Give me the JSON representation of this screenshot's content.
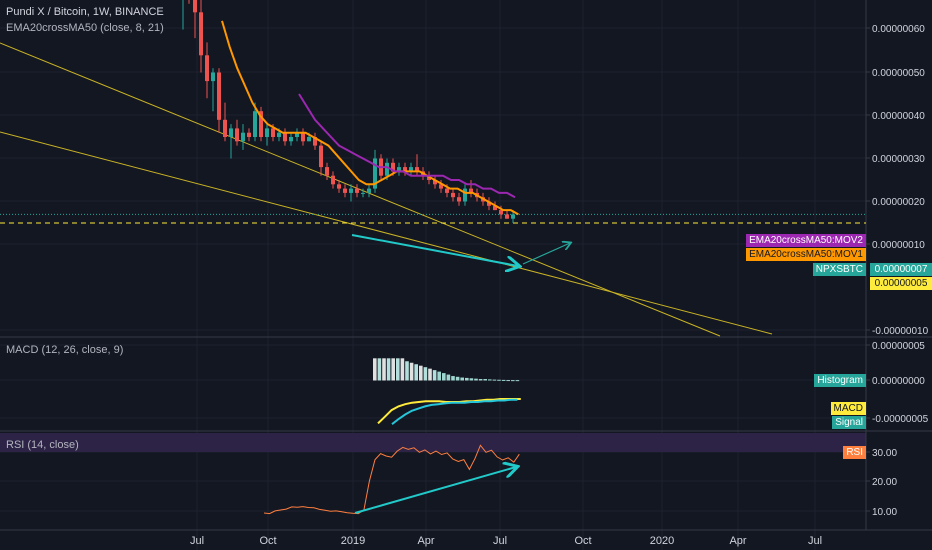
{
  "header": {
    "title": "Pundi X / Bitcoin, 1W, BINANCE",
    "indicator": "EMA20crossMA50 (close, 8, 21)",
    "macd": "MACD (12, 26, close, 9)",
    "rsi": "RSI (14, close)"
  },
  "badges": {
    "mov2": "EMA20crossMA50:MOV2",
    "mov1": "EMA20crossMA50:MOV1",
    "symbol": "NPXSBTC",
    "histogram": "Histogram",
    "macd": "MACD",
    "signal": "Signal",
    "rsi": "RSI"
  },
  "price_labels": {
    "current": "0.00000007",
    "dashed": "0.00000005"
  },
  "colors": {
    "background": "#131722",
    "up": "#26a69a",
    "down": "#ef5350",
    "ema": "#ff9800",
    "ma": "#9c27b0",
    "trendline": "#c9b326",
    "annotation": "#22c9c9",
    "rsi_line": "#ff7f3f",
    "rsi_band": "#2d2347",
    "macd_line": "#ffeb3b",
    "signal_line": "#26c6da",
    "price_line_current": "#26a69a",
    "price_line_dashed": "#ffeb3b"
  },
  "chart_data": [
    {
      "type": "candlestick",
      "title": "Pundi X / Bitcoin, 1W, BINANCE",
      "x_ticks": [
        "Jul",
        "Oct",
        "2019",
        "Apr",
        "Jul",
        "Oct",
        "2020",
        "Apr",
        "Jul"
      ],
      "y_ticks": [
        "0.00000060",
        "0.00000050",
        "0.00000040",
        "0.00000030",
        "0.00000020",
        "0.00000010",
        "-0.00000010"
      ],
      "ylim": [
        -1e-07,
        6.5e-07
      ],
      "candles": [
        {
          "o": 62,
          "h": 66,
          "l": 50,
          "c": 66
        },
        {
          "o": 66,
          "h": 70,
          "l": 56,
          "c": 60
        },
        {
          "o": 60,
          "h": 64,
          "l": 48,
          "c": 54
        },
        {
          "o": 54,
          "h": 58,
          "l": 40,
          "c": 44
        },
        {
          "o": 44,
          "h": 47,
          "l": 34,
          "c": 38
        },
        {
          "o": 38,
          "h": 41,
          "l": 31,
          "c": 40
        },
        {
          "o": 40,
          "h": 41,
          "l": 26,
          "c": 29
        },
        {
          "o": 29,
          "h": 33,
          "l": 24,
          "c": 25
        },
        {
          "o": 25,
          "h": 28,
          "l": 20,
          "c": 27
        },
        {
          "o": 27,
          "h": 29,
          "l": 23,
          "c": 24
        },
        {
          "o": 24,
          "h": 28,
          "l": 22,
          "c": 26
        },
        {
          "o": 26,
          "h": 27,
          "l": 24,
          "c": 25
        },
        {
          "o": 25,
          "h": 33,
          "l": 24,
          "c": 31
        },
        {
          "o": 31,
          "h": 32,
          "l": 24,
          "c": 25
        },
        {
          "o": 25,
          "h": 28,
          "l": 23,
          "c": 27
        },
        {
          "o": 27,
          "h": 28,
          "l": 24,
          "c": 25
        },
        {
          "o": 25,
          "h": 27,
          "l": 24,
          "c": 26
        },
        {
          "o": 26,
          "h": 27,
          "l": 23,
          "c": 24
        },
        {
          "o": 24,
          "h": 26,
          "l": 23,
          "c": 25
        },
        {
          "o": 25,
          "h": 27,
          "l": 24,
          "c": 26
        },
        {
          "o": 26,
          "h": 27,
          "l": 23,
          "c": 24
        },
        {
          "o": 24,
          "h": 26,
          "l": 24,
          "c": 25
        },
        {
          "o": 25,
          "h": 26,
          "l": 22,
          "c": 23
        },
        {
          "o": 23,
          "h": 24,
          "l": 16,
          "c": 18
        },
        {
          "o": 18,
          "h": 19,
          "l": 15,
          "c": 16
        },
        {
          "o": 16,
          "h": 17,
          "l": 13,
          "c": 14
        },
        {
          "o": 14,
          "h": 15,
          "l": 12,
          "c": 13
        },
        {
          "o": 13,
          "h": 14,
          "l": 11,
          "c": 12
        },
        {
          "o": 12,
          "h": 14,
          "l": 10,
          "c": 13
        },
        {
          "o": 13,
          "h": 14,
          "l": 11,
          "c": 12
        },
        {
          "o": 12,
          "h": 13,
          "l": 11,
          "c": 12
        },
        {
          "o": 12,
          "h": 14,
          "l": 11,
          "c": 13
        },
        {
          "o": 13,
          "h": 22,
          "l": 12,
          "c": 20
        },
        {
          "o": 20,
          "h": 21,
          "l": 15,
          "c": 16
        },
        {
          "o": 16,
          "h": 20,
          "l": 15,
          "c": 19
        },
        {
          "o": 19,
          "h": 20,
          "l": 16,
          "c": 17
        },
        {
          "o": 17,
          "h": 19,
          "l": 16,
          "c": 18
        },
        {
          "o": 18,
          "h": 19,
          "l": 16,
          "c": 17
        },
        {
          "o": 17,
          "h": 19,
          "l": 16,
          "c": 18
        },
        {
          "o": 18,
          "h": 21,
          "l": 16,
          "c": 17
        },
        {
          "o": 17,
          "h": 18,
          "l": 15,
          "c": 16
        },
        {
          "o": 16,
          "h": 17,
          "l": 14,
          "c": 15
        },
        {
          "o": 15,
          "h": 16,
          "l": 13,
          "c": 14
        },
        {
          "o": 14,
          "h": 15,
          "l": 12,
          "c": 13
        },
        {
          "o": 13,
          "h": 14,
          "l": 11,
          "c": 12
        },
        {
          "o": 12,
          "h": 13,
          "l": 10,
          "c": 11
        },
        {
          "o": 11,
          "h": 12,
          "l": 9,
          "c": 10
        },
        {
          "o": 10,
          "h": 14,
          "l": 9,
          "c": 13
        },
        {
          "o": 13,
          "h": 15,
          "l": 11,
          "c": 12
        },
        {
          "o": 12,
          "h": 13,
          "l": 10,
          "c": 11
        },
        {
          "o": 11,
          "h": 12,
          "l": 9,
          "c": 10
        },
        {
          "o": 10,
          "h": 11,
          "l": 8,
          "c": 9
        },
        {
          "o": 9,
          "h": 10,
          "l": 8,
          "c": 8
        },
        {
          "o": 8,
          "h": 9,
          "l": 6,
          "c": 7
        },
        {
          "o": 7,
          "h": 8,
          "l": 6,
          "c": 6
        },
        {
          "o": 6,
          "h": 8,
          "l": 5,
          "c": 7
        }
      ],
      "ema": [
        52,
        46,
        41,
        37,
        33,
        30,
        28,
        27,
        26,
        26,
        26,
        26,
        25,
        24,
        23,
        21,
        19,
        17,
        15,
        14,
        14,
        15,
        16,
        17,
        17,
        17,
        17,
        16,
        15,
        14,
        13,
        13,
        12,
        12,
        11,
        10,
        9,
        8,
        8,
        7
      ],
      "ma": [
        35,
        32,
        29,
        27,
        25,
        23,
        22,
        21,
        20,
        19,
        18,
        18,
        17,
        17,
        16,
        16,
        16,
        16,
        16,
        15,
        15,
        14,
        14,
        13,
        13,
        12,
        12,
        11
      ],
      "current_price": 7,
      "dashed_price": 5
    },
    {
      "type": "histogram",
      "title": "MACD (12, 26, close, 9)",
      "y_ticks": [
        "0.00000005",
        "0.00000000",
        "-0.00000005"
      ],
      "histogram": [
        3,
        3,
        3,
        3,
        3,
        3,
        3,
        2.6,
        2.4,
        2.2,
        2.0,
        1.8,
        1.6,
        1.4,
        1.2,
        1.0,
        0.8,
        0.6,
        0.5,
        0.4,
        0.35,
        0.3,
        0.25,
        0.2,
        0.2,
        0.15,
        0.12,
        0.1,
        0.08,
        0.06,
        0.05,
        0.05
      ],
      "macd": [
        -5.8,
        -4.9,
        -4.0,
        -3.5,
        -3.2,
        -3.0,
        -2.9,
        -2.8,
        -2.8,
        -2.8,
        -2.9,
        -2.9,
        -2.9,
        -2.8,
        -2.8,
        -2.7,
        -2.6,
        -2.6,
        -2.5,
        -2.5,
        -2.5,
        -2.5
      ],
      "signal": [
        -5.9,
        -5.2,
        -4.6,
        -4.1,
        -3.8,
        -3.5,
        -3.3,
        -3.2,
        -3.1,
        -3.0,
        -3.0,
        -3.0,
        -2.9,
        -2.9,
        -2.8,
        -2.8,
        -2.7,
        -2.7,
        -2.6,
        -2.6
      ]
    },
    {
      "type": "line",
      "title": "RSI (14, close)",
      "y_ticks": [
        "30.00",
        "20.00",
        "10.00"
      ],
      "rsi": [
        9.5,
        9.3,
        10.2,
        10.5,
        10.8,
        11.5,
        11.4,
        11.6,
        11.3,
        11.2,
        10.7,
        10.4,
        10.1,
        10.2,
        9.9,
        9.6,
        9.4,
        9.3,
        10.5,
        20.0,
        27.0,
        29.0,
        28.2,
        27.8,
        29.8,
        31.0,
        30.4,
        30.9,
        29.4,
        30.2,
        28.9,
        29.8,
        28.7,
        29.2,
        27.2,
        26.4,
        27.0,
        23.8,
        27.3,
        31.7,
        29.4,
        30.1,
        27.9,
        26.9,
        27.6,
        26.2,
        28.8
      ]
    }
  ]
}
